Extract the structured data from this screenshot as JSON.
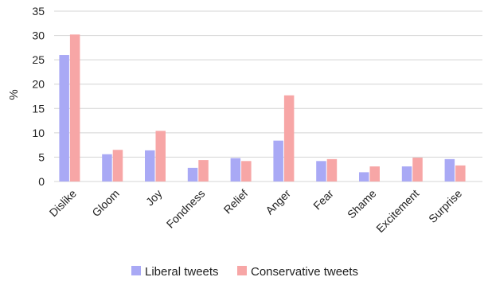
{
  "chart_data": {
    "type": "bar",
    "title": "",
    "xlabel": "",
    "ylabel": "%",
    "ylim": [
      0,
      35
    ],
    "yticks": [
      0,
      5,
      10,
      15,
      20,
      25,
      30,
      35
    ],
    "grid": "horizontal",
    "legend_position": "bottom",
    "categories": [
      "Dislike",
      "Gloom",
      "Joy",
      "Fondness",
      "Relief",
      "Anger",
      "Fear",
      "Shame",
      "Excitement",
      "Surprise"
    ],
    "series": [
      {
        "name": "Liberal tweets",
        "color": "#a9a9f5",
        "values": [
          26,
          5.6,
          6.4,
          2.8,
          4.8,
          8.4,
          4.2,
          1.9,
          3.1,
          4.6
        ]
      },
      {
        "name": "Conservative tweets",
        "color": "#f7a6a6",
        "values": [
          30.2,
          6.5,
          10.4,
          4.4,
          4.2,
          17.7,
          4.6,
          3.1,
          4.9,
          3.3
        ]
      }
    ]
  }
}
